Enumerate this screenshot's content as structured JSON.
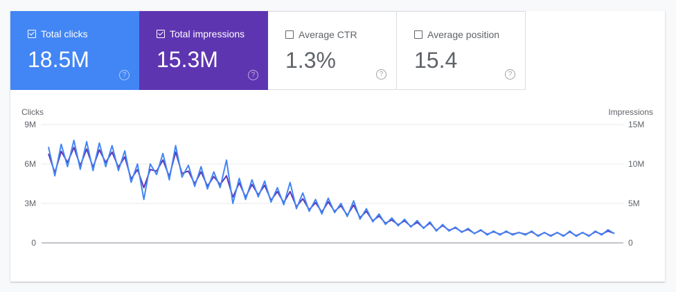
{
  "metrics": [
    {
      "label": "Total clicks",
      "value": "18.5M",
      "checked": true,
      "color": "#4285f4"
    },
    {
      "label": "Total impressions",
      "value": "15.3M",
      "checked": true,
      "color": "#5e35b1"
    },
    {
      "label": "Average CTR",
      "value": "1.3%",
      "checked": false
    },
    {
      "label": "Average position",
      "value": "15.4",
      "checked": false
    }
  ],
  "help_glyph": "?",
  "chart_data": {
    "type": "line",
    "left_axis": {
      "label": "Clicks",
      "ticks": [
        "0",
        "3M",
        "6M",
        "9M"
      ],
      "range": [
        0,
        9
      ]
    },
    "right_axis": {
      "label": "Impressions",
      "ticks": [
        "0",
        "5M",
        "10M",
        "15M"
      ],
      "range": [
        0,
        15
      ]
    },
    "grid": true,
    "series": [
      {
        "name": "Clicks",
        "axis": "left",
        "color": "#4285f4",
        "unit": "M",
        "values": [
          7.3,
          5.1,
          7.5,
          5.8,
          7.8,
          5.6,
          7.7,
          5.5,
          7.6,
          5.8,
          7.4,
          5.5,
          7.0,
          4.6,
          6.0,
          3.3,
          6.0,
          5.2,
          6.8,
          4.8,
          7.4,
          5.0,
          5.9,
          4.3,
          5.8,
          4.1,
          5.4,
          4.2,
          6.3,
          3.0,
          4.9,
          3.3,
          4.8,
          3.5,
          4.7,
          3.1,
          4.2,
          2.9,
          4.6,
          2.6,
          3.8,
          2.4,
          3.3,
          2.2,
          3.4,
          2.3,
          3.0,
          2.0,
          3.2,
          1.8,
          2.6,
          1.6,
          2.2,
          1.4,
          1.9,
          1.3,
          1.8,
          1.2,
          1.7,
          1.1,
          1.6,
          0.9,
          1.4,
          0.9,
          1.2,
          0.8,
          1.1,
          0.7,
          1.0,
          0.6,
          0.9,
          0.6,
          0.9,
          0.6,
          0.8,
          0.6,
          0.9,
          0.5,
          0.8,
          0.5,
          0.8,
          0.5,
          0.9,
          0.5,
          0.8,
          0.5,
          0.9,
          0.6,
          1.0,
          0.7
        ]
      },
      {
        "name": "Impressions",
        "axis": "right",
        "color": "#5e35b1",
        "unit": "M",
        "values": [
          11.3,
          8.9,
          11.6,
          10.2,
          12.1,
          9.8,
          11.9,
          9.6,
          11.8,
          10.2,
          11.5,
          9.6,
          10.9,
          8.1,
          9.3,
          7.0,
          9.3,
          9.1,
          10.5,
          8.4,
          11.5,
          8.8,
          9.1,
          7.5,
          9.0,
          7.2,
          8.4,
          7.4,
          8.5,
          5.8,
          7.6,
          5.8,
          7.4,
          6.1,
          7.3,
          5.4,
          6.5,
          5.1,
          6.5,
          4.6,
          5.6,
          4.2,
          5.1,
          3.9,
          5.2,
          4.0,
          4.7,
          3.5,
          4.8,
          3.2,
          4.0,
          2.8,
          3.4,
          2.5,
          2.9,
          2.3,
          2.8,
          2.1,
          2.6,
          1.9,
          2.5,
          1.6,
          2.2,
          1.6,
          1.9,
          1.4,
          1.7,
          1.2,
          1.6,
          1.1,
          1.4,
          1.1,
          1.4,
          1.1,
          1.3,
          1.1,
          1.4,
          0.9,
          1.3,
          0.9,
          1.3,
          0.9,
          1.4,
          0.9,
          1.3,
          0.9,
          1.4,
          1.1,
          1.5,
          1.2
        ]
      }
    ]
  }
}
